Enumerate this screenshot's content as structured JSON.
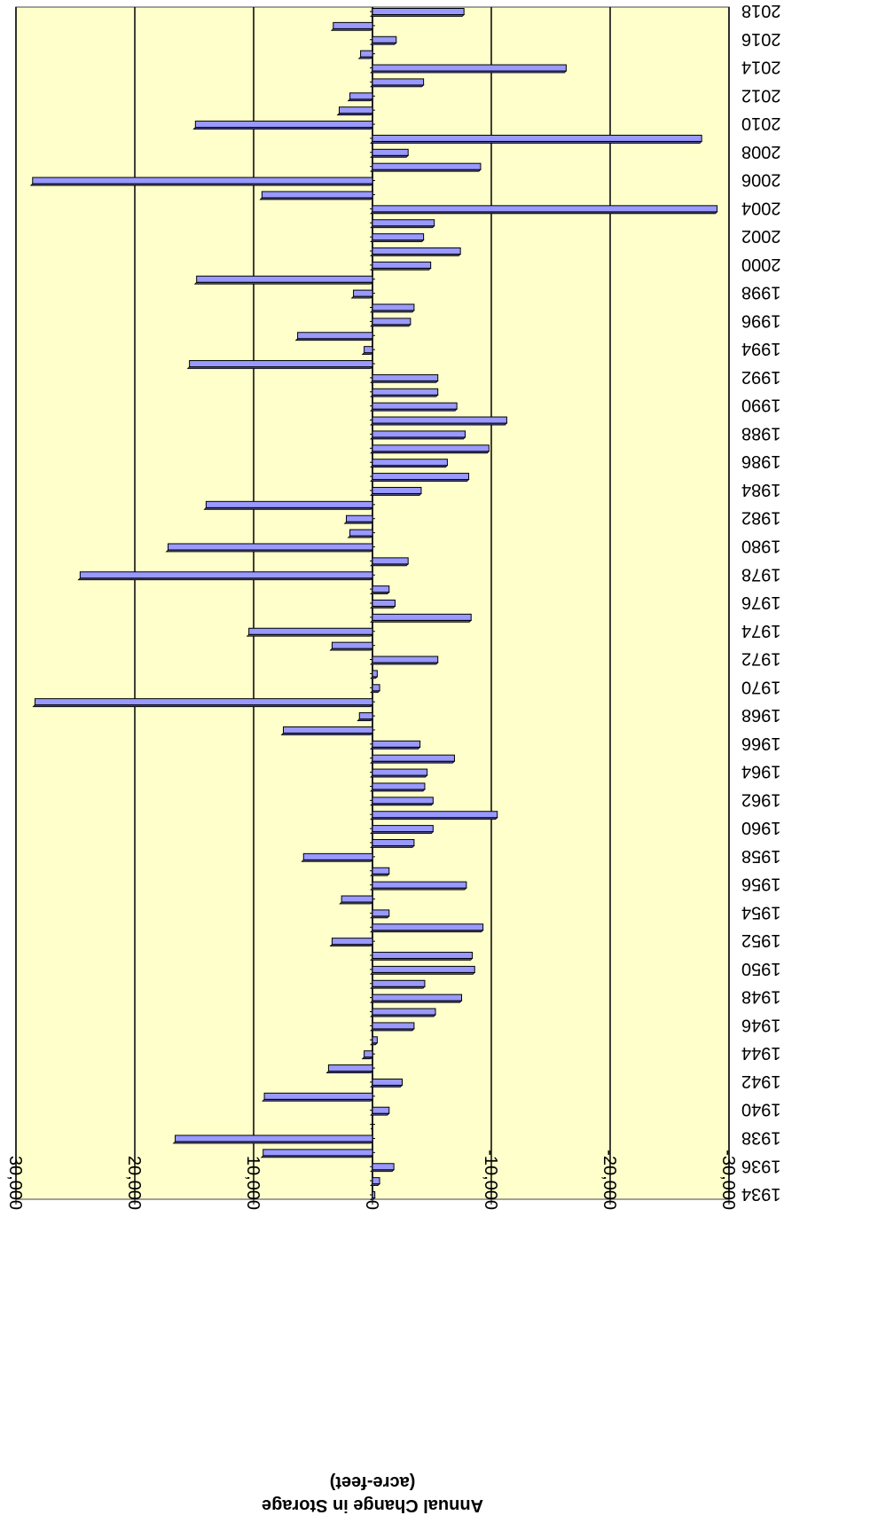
{
  "chart_data": {
    "type": "bar",
    "orientation": "horizontal",
    "value_axis_title": [
      "Annual Change in Storage",
      "(acre-feet)"
    ],
    "categories": [
      "1934",
      null,
      "1936",
      null,
      "1938",
      null,
      "1940",
      null,
      "1942",
      null,
      "1944",
      null,
      "1946",
      null,
      "1948",
      null,
      "1950",
      null,
      "1952",
      null,
      "1954",
      null,
      "1956",
      null,
      "1958",
      null,
      "1960",
      null,
      "1962",
      null,
      "1964",
      null,
      "1966",
      null,
      "1968",
      null,
      "1970",
      null,
      "1972",
      null,
      "1974",
      null,
      "1976",
      null,
      "1978",
      null,
      "1980",
      null,
      "1982",
      null,
      "1984",
      null,
      "1986",
      null,
      "1988",
      null,
      "1990",
      null,
      "1992",
      null,
      "1994",
      null,
      "1996",
      null,
      "1998",
      null,
      "2000",
      null,
      "2002",
      null,
      "2004",
      null,
      "2006",
      null,
      "2008",
      null,
      "2010",
      null,
      "2012",
      null,
      "2014",
      null,
      "2016",
      null,
      "2018"
    ],
    "values": [
      -200,
      -600,
      -1800,
      9200,
      16600,
      0,
      -1400,
      9100,
      -2500,
      3700,
      700,
      -400,
      -3500,
      -5300,
      -7500,
      -4400,
      -8600,
      -8400,
      3400,
      -9300,
      -1400,
      2600,
      -7900,
      -1400,
      5800,
      -3500,
      -5100,
      -10500,
      -5100,
      -4400,
      -4600,
      -6900,
      -4000,
      7500,
      1100,
      28400,
      -600,
      -400,
      -5500,
      3400,
      10400,
      -8300,
      -1900,
      -1400,
      24600,
      -3000,
      17200,
      1900,
      2200,
      14000,
      -4100,
      -8100,
      -6300,
      -9800,
      -7800,
      -11300,
      -7100,
      -5500,
      -5500,
      15400,
      700,
      6300,
      -3200,
      -3500,
      1600,
      14800,
      -4900,
      -7400,
      -4300,
      -5200,
      -29000,
      9300,
      28600,
      -9100,
      -3000,
      -27700,
      14900,
      2800,
      1900,
      -4300,
      -16300,
      1000,
      -2000,
      3300,
      -7700
    ],
    "color": "#9999ff",
    "plot_background": "#ffffcc",
    "xlim": [
      -30000,
      30000
    ],
    "xticks": [
      {
        "value": -30000,
        "label": "-30,000"
      },
      {
        "value": -20000,
        "label": "-20,000"
      },
      {
        "value": -10000,
        "label": "-10,000"
      },
      0,
      {
        "value": 10000,
        "label": "10,000"
      },
      {
        "value": 20000,
        "label": "20,000"
      },
      {
        "value": 30000,
        "label": "30,000"
      }
    ],
    "grid": true,
    "rotation": 180
  }
}
